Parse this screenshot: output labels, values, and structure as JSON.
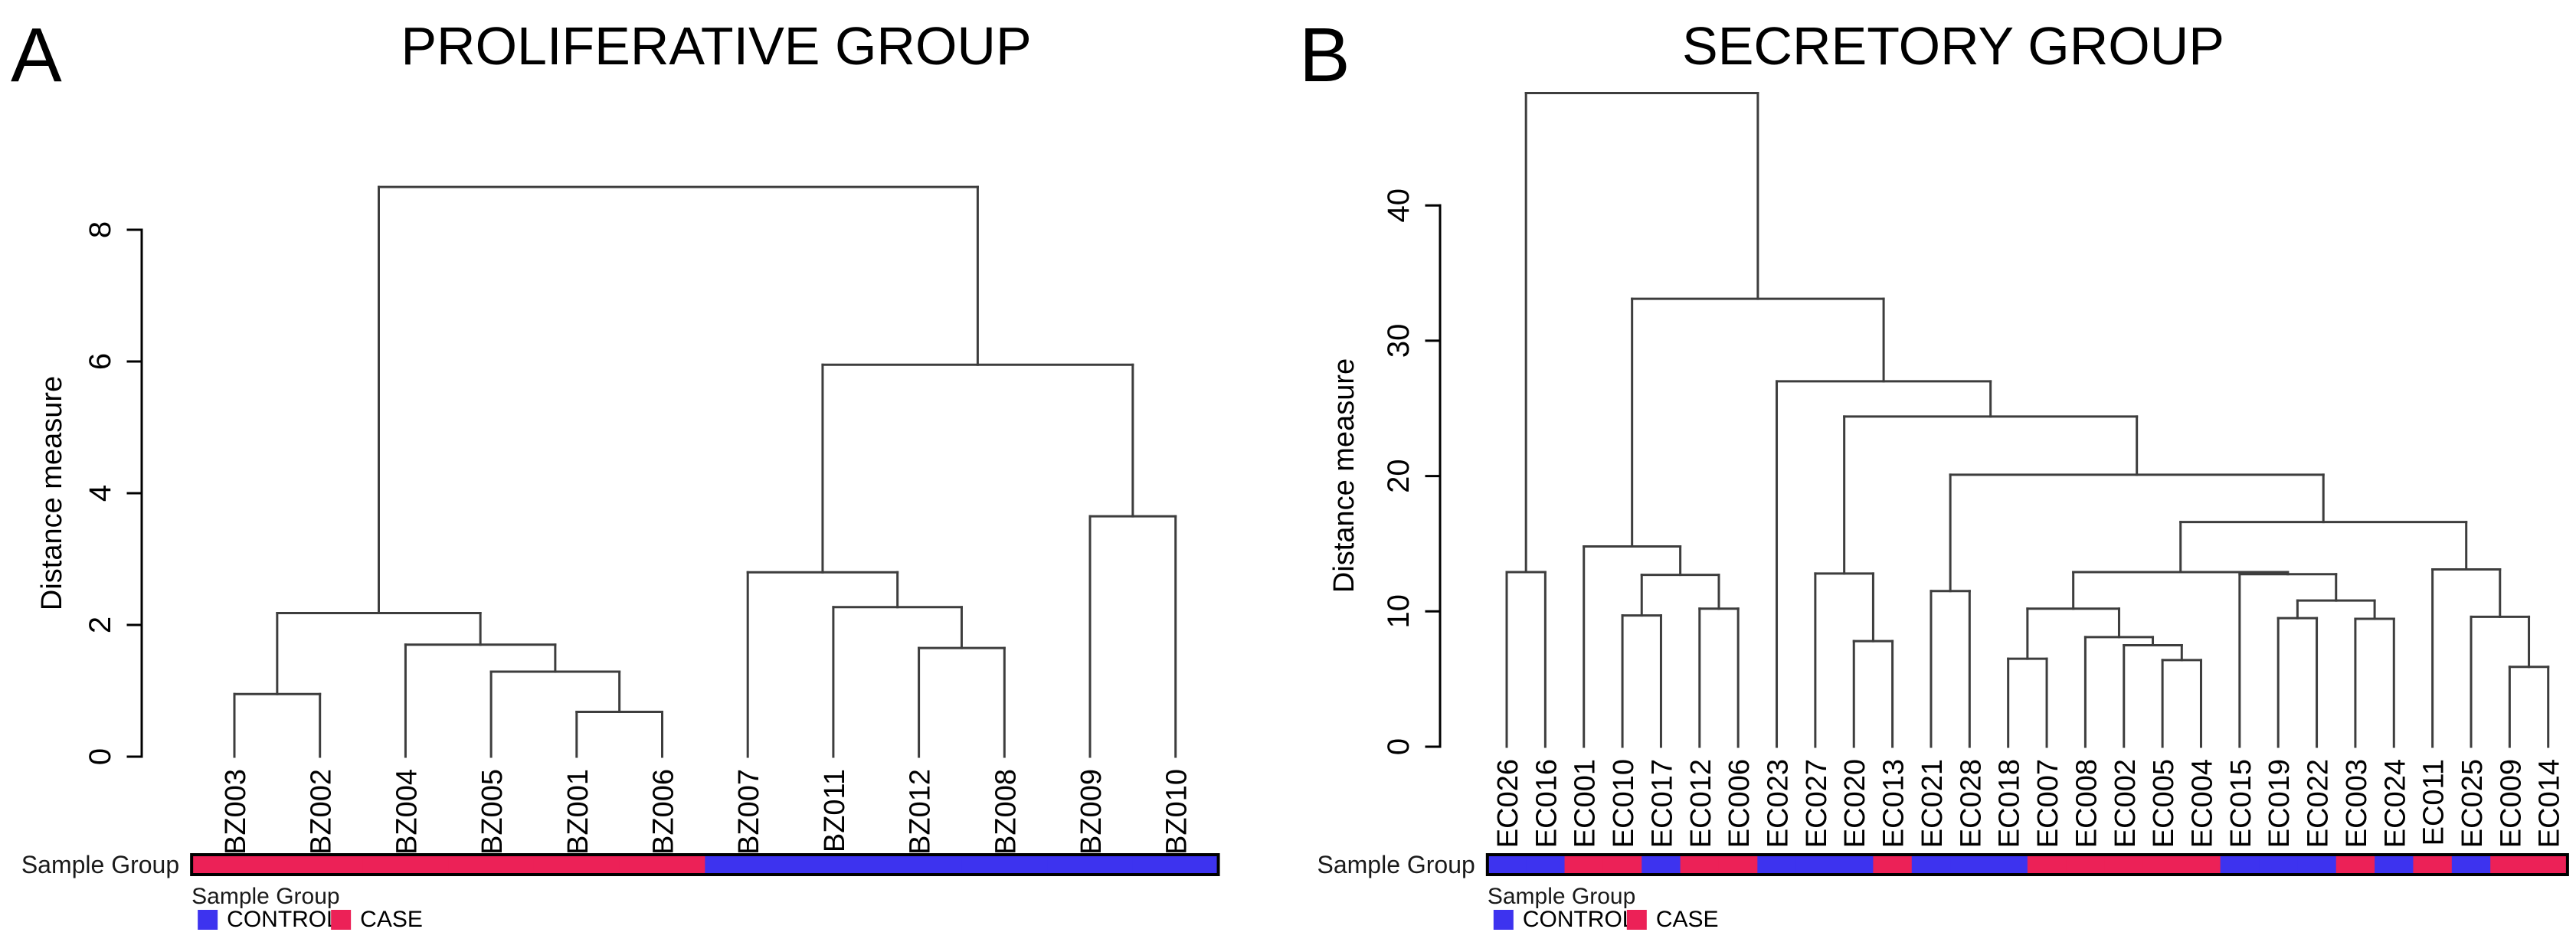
{
  "figure": {
    "background": "#ffffff",
    "line_color": "#3d3d3d",
    "axis_color": "#000000",
    "group_colors": {
      "CONTROL": "#3D33EF",
      "CASE": "#EC2157"
    },
    "bar_side_label": "Sample Group",
    "legend": {
      "title": "Sample Group",
      "entries": [
        {
          "label": "CONTROL",
          "group": "CONTROL"
        },
        {
          "label": "CASE",
          "group": "CASE"
        }
      ]
    }
  },
  "chart_data": [
    {
      "type": "dendrogram",
      "panel_letter": "A",
      "title": "PROLIFERATIVE GROUP",
      "ylabel": "Distance measure",
      "yticks": [
        0,
        2,
        4,
        6,
        8
      ],
      "ylim": [
        0,
        8.8
      ],
      "grid": false,
      "leaves": [
        "BZ003",
        "BZ002",
        "BZ004",
        "BZ005",
        "BZ001",
        "BZ006",
        "BZ007",
        "BZ011",
        "BZ012",
        "BZ008",
        "BZ009",
        "BZ010"
      ],
      "leaf_groups": [
        "CASE",
        "CASE",
        "CASE",
        "CASE",
        "CASE",
        "CASE",
        "CONTROL",
        "CONTROL",
        "CONTROL",
        "CONTROL",
        "CONTROL",
        "CONTROL"
      ],
      "tree": {
        "h": 8.65,
        "c": [
          {
            "h": 2.18,
            "c": [
              {
                "h": 0.95,
                "c": [
                  {
                    "leaf": "BZ003"
                  },
                  {
                    "leaf": "BZ002"
                  }
                ]
              },
              {
                "h": 1.7,
                "c": [
                  {
                    "leaf": "BZ004"
                  },
                  {
                    "h": 1.29,
                    "c": [
                      {
                        "leaf": "BZ005"
                      },
                      {
                        "h": 0.68,
                        "c": [
                          {
                            "leaf": "BZ001"
                          },
                          {
                            "leaf": "BZ006"
                          }
                        ]
                      }
                    ]
                  }
                ]
              }
            ]
          },
          {
            "h": 5.95,
            "c": [
              {
                "h": 2.8,
                "c": [
                  {
                    "leaf": "BZ007"
                  },
                  {
                    "h": 2.27,
                    "c": [
                      {
                        "leaf": "BZ011"
                      },
                      {
                        "h": 1.65,
                        "c": [
                          {
                            "leaf": "BZ012"
                          },
                          {
                            "leaf": "BZ008"
                          }
                        ]
                      }
                    ]
                  }
                ]
              },
              {
                "h": 3.65,
                "c": [
                  {
                    "leaf": "BZ009"
                  },
                  {
                    "leaf": "BZ010"
                  }
                ]
              }
            ]
          }
        ]
      }
    },
    {
      "type": "dendrogram",
      "panel_letter": "B",
      "title": "SECRETORY GROUP",
      "ylabel": "Distance measure",
      "yticks": [
        0,
        10,
        20,
        30,
        40
      ],
      "ylim": [
        0,
        48.5
      ],
      "grid": false,
      "leaves": [
        "EC026",
        "EC016",
        "EC001",
        "EC010",
        "EC017",
        "EC012",
        "EC006",
        "EC023",
        "EC027",
        "EC020",
        "EC013",
        "EC021",
        "EC028",
        "EC018",
        "EC007",
        "EC008",
        "EC002",
        "EC005",
        "EC004",
        "EC015",
        "EC019",
        "EC022",
        "EC003",
        "EC024",
        "EC011",
        "EC025",
        "EC009",
        "EC014"
      ],
      "leaf_groups": [
        "CONTROL",
        "CONTROL",
        "CASE",
        "CASE",
        "CONTROL",
        "CASE",
        "CASE",
        "CONTROL",
        "CONTROL",
        "CONTROL",
        "CASE",
        "CONTROL",
        "CONTROL",
        "CONTROL",
        "CASE",
        "CASE",
        "CASE",
        "CASE",
        "CASE",
        "CONTROL",
        "CONTROL",
        "CONTROL",
        "CASE",
        "CONTROL",
        "CASE",
        "CONTROL",
        "CASE",
        "CASE"
      ],
      "tree": {
        "h": 48.3,
        "c": [
          {
            "h": 12.9,
            "c": [
              {
                "leaf": "EC026"
              },
              {
                "leaf": "EC016"
              }
            ]
          },
          {
            "h": 33.1,
            "c": [
              {
                "h": 14.8,
                "c": [
                  {
                    "leaf": "EC001"
                  },
                  {
                    "h": 12.7,
                    "c": [
                      {
                        "h": 9.7,
                        "c": [
                          {
                            "leaf": "EC010"
                          },
                          {
                            "leaf": "EC017"
                          }
                        ]
                      },
                      {
                        "h": 10.2,
                        "c": [
                          {
                            "leaf": "EC012"
                          },
                          {
                            "leaf": "EC006"
                          }
                        ]
                      }
                    ]
                  }
                ]
              },
              {
                "h": 27.0,
                "c": [
                  {
                    "leaf": "EC023"
                  },
                  {
                    "h": 24.4,
                    "c": [
                      {
                        "h": 12.8,
                        "c": [
                          {
                            "leaf": "EC027"
                          },
                          {
                            "h": 7.8,
                            "c": [
                              {
                                "leaf": "EC020"
                              },
                              {
                                "leaf": "EC013"
                              }
                            ]
                          }
                        ]
                      },
                      {
                        "h": 20.1,
                        "c": [
                          {
                            "h": 11.5,
                            "c": [
                              {
                                "leaf": "EC021"
                              },
                              {
                                "leaf": "EC028"
                              }
                            ]
                          },
                          {
                            "h": 16.6,
                            "c": [
                              {
                                "h": 12.9,
                                "c": [
                                  {
                                    "h": 10.2,
                                    "c": [
                                      {
                                        "h": 6.5,
                                        "c": [
                                          {
                                            "leaf": "EC018"
                                          },
                                          {
                                            "leaf": "EC007"
                                          }
                                        ]
                                      },
                                      {
                                        "h": 8.1,
                                        "c": [
                                          {
                                            "leaf": "EC008"
                                          },
                                          {
                                            "h": 7.5,
                                            "c": [
                                              {
                                                "leaf": "EC002"
                                              },
                                              {
                                                "h": 6.4,
                                                "c": [
                                                  {
                                                    "leaf": "EC005"
                                                  },
                                                  {
                                                    "leaf": "EC004"
                                                  }
                                                ]
                                              }
                                            ]
                                          }
                                        ]
                                      }
                                    ]
                                  },
                                  {
                                    "h": 12.75,
                                    "c": [
                                      {
                                        "leaf": "EC015"
                                      },
                                      {
                                        "h": 10.8,
                                        "c": [
                                          {
                                            "h": 9.5,
                                            "c": [
                                              {
                                                "leaf": "EC019"
                                              },
                                              {
                                                "leaf": "EC022"
                                              }
                                            ]
                                          },
                                          {
                                            "h": 9.45,
                                            "c": [
                                              {
                                                "leaf": "EC003"
                                              },
                                              {
                                                "leaf": "EC024"
                                              }
                                            ]
                                          }
                                        ]
                                      }
                                    ]
                                  }
                                ]
                              },
                              {
                                "h": 13.1,
                                "c": [
                                  {
                                    "leaf": "EC011"
                                  },
                                  {
                                    "h": 9.6,
                                    "c": [
                                      {
                                        "leaf": "EC025"
                                      },
                                      {
                                        "h": 5.9,
                                        "c": [
                                          {
                                            "leaf": "EC009"
                                          },
                                          {
                                            "leaf": "EC014"
                                          }
                                        ]
                                      }
                                    ]
                                  }
                                ]
                              }
                            ]
                          }
                        ]
                      }
                    ]
                  }
                ]
              }
            ]
          }
        ]
      }
    }
  ]
}
